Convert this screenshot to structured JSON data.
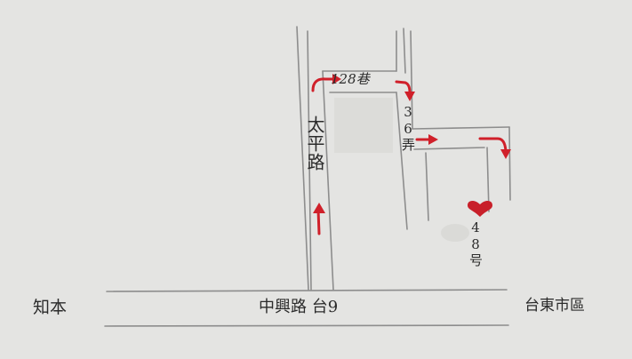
{
  "roads": {
    "main_road": "中興路 台9",
    "vertical_road": "太平路",
    "lane_128": "128巷",
    "alley_36": "36弄"
  },
  "directions": {
    "left": "知本",
    "right": "台東市區"
  },
  "destination": {
    "label": "48号",
    "icon": "heart-icon",
    "color": "#c8202a"
  },
  "colors": {
    "paper": "#e4e4e2",
    "pencil": "#8d8d8d",
    "route": "#d0202a"
  }
}
